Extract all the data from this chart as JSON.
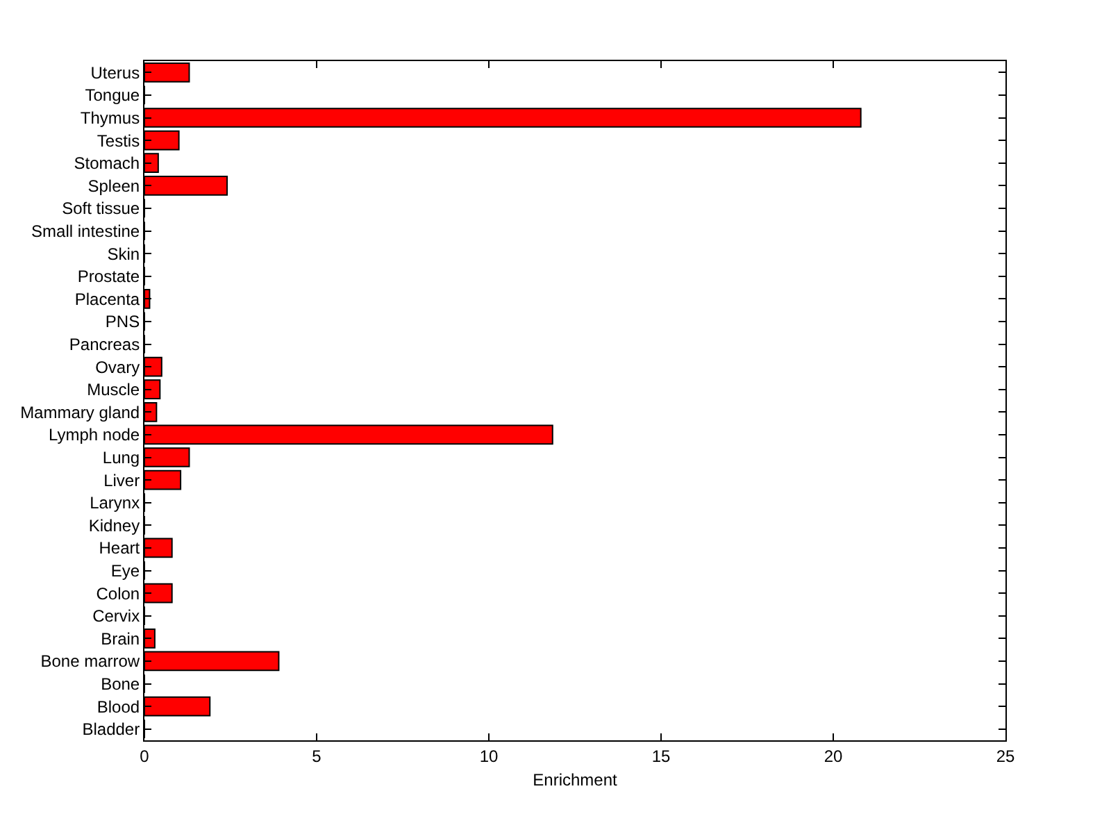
{
  "chart_data": {
    "type": "bar",
    "orientation": "horizontal",
    "categories": [
      "Uterus",
      "Tongue",
      "Thymus",
      "Testis",
      "Stomach",
      "Spleen",
      "Soft tissue",
      "Small intestine",
      "Skin",
      "Prostate",
      "Placenta",
      "PNS",
      "Pancreas",
      "Ovary",
      "Muscle",
      "Mammary gland",
      "Lymph node",
      "Lung",
      "Liver",
      "Larynx",
      "Kidney",
      "Heart",
      "Eye",
      "Colon",
      "Cervix",
      "Brain",
      "Bone marrow",
      "Bone",
      "Blood",
      "Bladder"
    ],
    "values": [
      1.3,
      0,
      20.8,
      1.0,
      0.4,
      2.4,
      0,
      0,
      0,
      0,
      0.15,
      0,
      0,
      0.5,
      0.45,
      0.35,
      11.85,
      1.3,
      1.05,
      0,
      0,
      0.8,
      0,
      0.8,
      0,
      0.3,
      3.9,
      0,
      1.9,
      0
    ],
    "color": "#ff0000",
    "xlim": [
      0,
      25
    ],
    "xticks": [
      0,
      5,
      10,
      15,
      20,
      25
    ],
    "xlabel": "Enrichment"
  }
}
